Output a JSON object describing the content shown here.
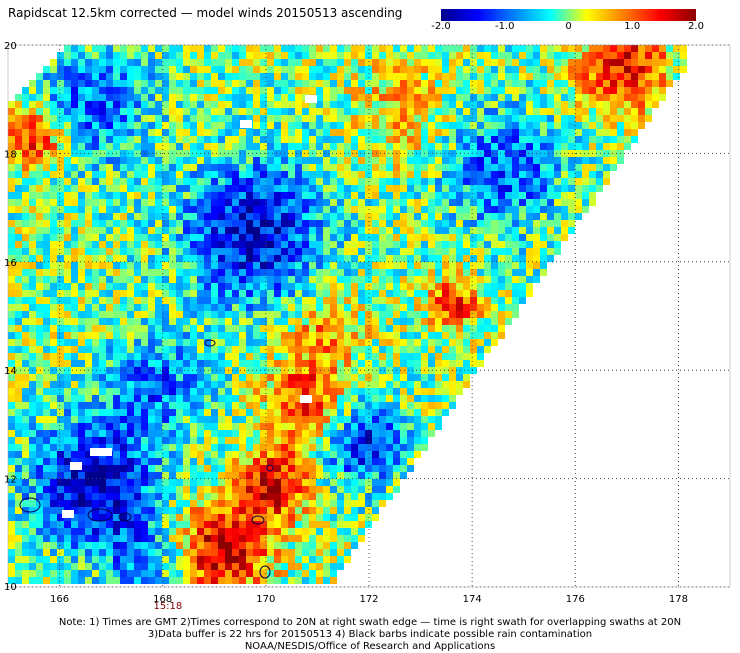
{
  "title": "Rapidscat 12.5km corrected — model winds 20150513 ascending",
  "colorbar": {
    "colors": [
      "#00008b",
      "#0000ff",
      "#0080ff",
      "#00ffff",
      "#ffff00",
      "#ff8000",
      "#ff0000",
      "#8b0000"
    ],
    "ticks": [
      {
        "label": "-2.0",
        "value": -2.0
      },
      {
        "label": "-1.0",
        "value": -1.0
      },
      {
        "label": "0",
        "value": 0.0
      },
      {
        "label": "1.0",
        "value": 1.0
      },
      {
        "label": "2.0",
        "value": 2.0
      }
    ]
  },
  "map": {
    "lon_range": [
      165,
      179
    ],
    "lat_range": [
      10,
      20
    ],
    "lon_labels": [
      "166",
      "168",
      "170",
      "172",
      "174",
      "176",
      "178"
    ],
    "lat_labels": [
      "20",
      "18",
      "16",
      "14",
      "12",
      "10"
    ],
    "grid": true,
    "time_marker": {
      "label": "15:18",
      "lon": 168.1
    }
  },
  "notes": [
    "Note: 1) Times are GMT 2)Times correspond to 20N at right swath edge — time is right swath for overlapping swaths at 20N",
    "3)Data buffer is 22 hrs for 20150513 4) Black barbs indicate possible rain contamination",
    "NOAA/NESDIS/Office of Research and Applications"
  ]
}
